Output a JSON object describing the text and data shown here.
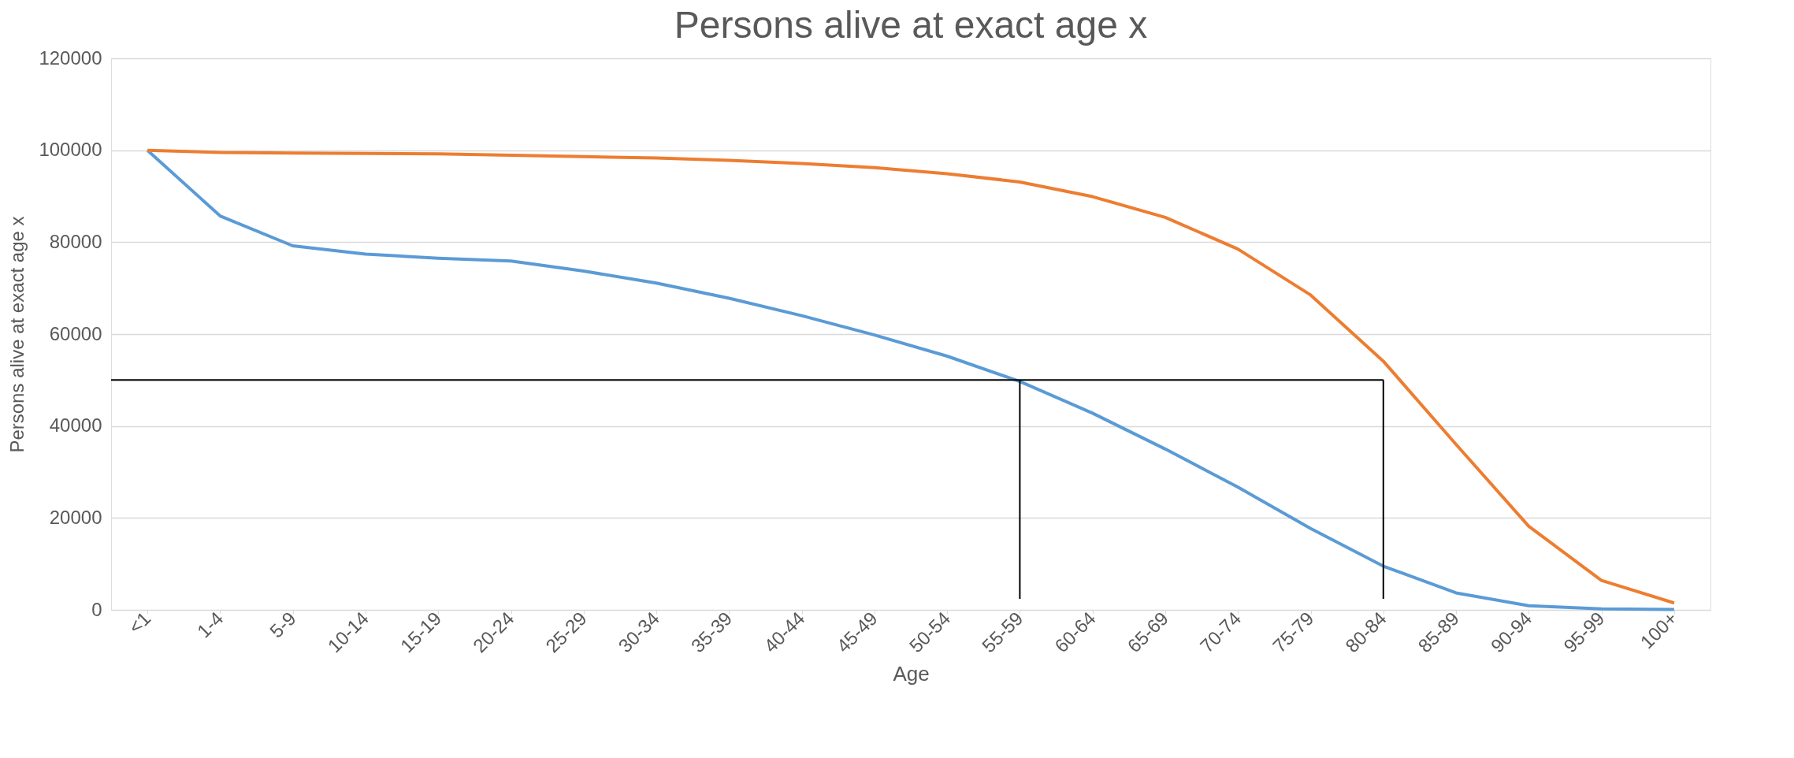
{
  "chart_data": {
    "type": "line",
    "title": "Persons alive at exact age x",
    "xlabel": "Age",
    "ylabel": "Persons alive at exact age x",
    "categories": [
      "<1",
      "1-4",
      "5-9",
      "10-14",
      "15-19",
      "20-24",
      "25-29",
      "30-34",
      "35-39",
      "40-44",
      "45-49",
      "50-54",
      "55-59",
      "60-64",
      "65-69",
      "70-74",
      "75-79",
      "80-84",
      "85-89",
      "90-94",
      "95-99",
      "100+"
    ],
    "series": [
      {
        "color": "#5b9bd5",
        "values": [
          100000,
          85700,
          79200,
          77400,
          76500,
          75900,
          73700,
          71100,
          67800,
          64000,
          59800,
          55200,
          49700,
          42800,
          35000,
          26700,
          17700,
          9500,
          3700,
          900,
          200,
          100
        ]
      },
      {
        "color": "#ed7d31",
        "values": [
          100000,
          99500,
          99400,
          99300,
          99200,
          98900,
          98600,
          98300,
          97800,
          97100,
          96200,
          94900,
          93100,
          89900,
          85400,
          78500,
          68500,
          54100,
          36000,
          18200,
          6400,
          1500
        ]
      }
    ],
    "ylim": [
      0,
      120000
    ],
    "yticks": [
      0,
      20000,
      40000,
      60000,
      80000,
      100000,
      120000
    ],
    "grid": "y",
    "legend": false,
    "marker": "none",
    "line_style": "solid",
    "ref_lines": [
      {
        "axis": "y",
        "value": 50000,
        "color": "#000000"
      },
      {
        "axis": "x",
        "value": "55-59",
        "color": "#000000"
      },
      {
        "axis": "x",
        "value": "80-84",
        "color": "#000000"
      }
    ]
  }
}
